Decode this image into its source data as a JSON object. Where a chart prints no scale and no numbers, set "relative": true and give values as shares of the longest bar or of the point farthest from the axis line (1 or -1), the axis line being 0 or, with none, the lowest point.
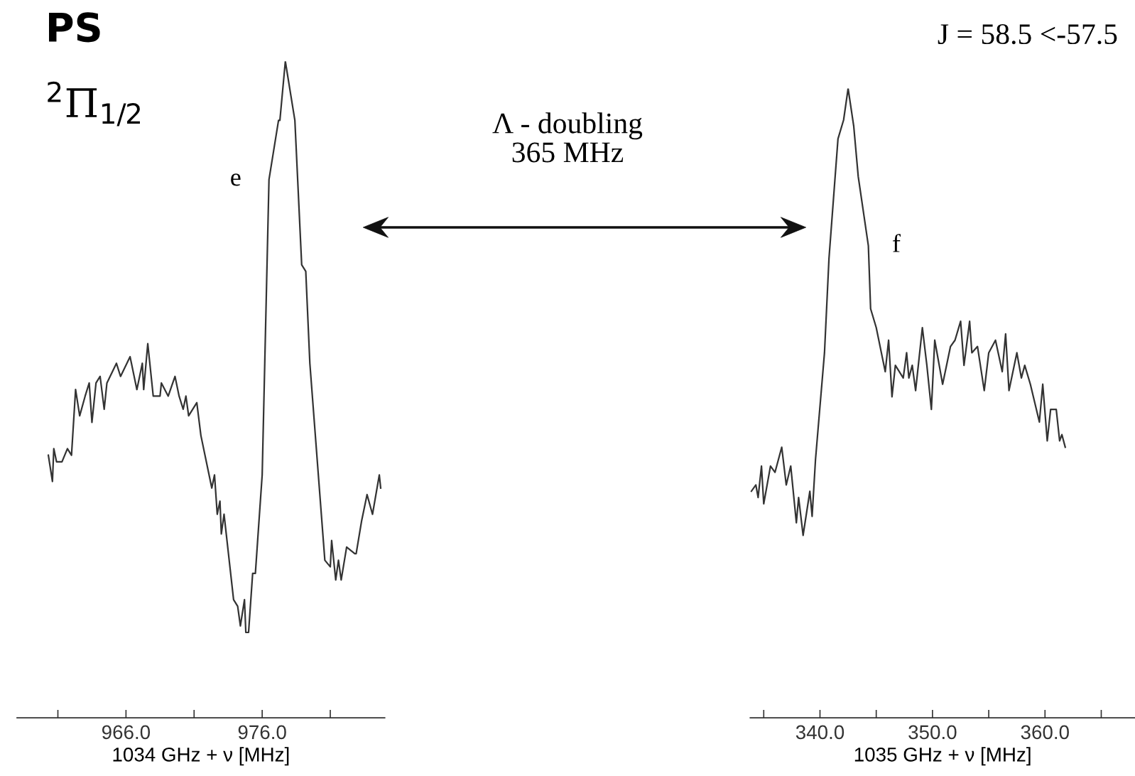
{
  "chart_data": [
    {
      "type": "line",
      "relative": true,
      "title": "PS",
      "subtitle": "$^{2}$Π$_{1/2}$",
      "xlabel": "1034 GHz + ν [MHz]",
      "annotations": [
        {
          "text": "e",
          "x": 976.5,
          "y": 0.82
        },
        "Λ - doubling\n365 MHz"
      ],
      "xlim": [
        958,
        985
      ],
      "xticks": [
        {
          "value": 961,
          "label": null
        },
        {
          "value": 966,
          "label": "966.0"
        },
        {
          "value": 971,
          "label": null
        },
        {
          "value": 976,
          "label": "976.0"
        },
        {
          "value": 981,
          "label": null
        }
      ],
      "tick_labels": "x",
      "grid": false,
      "legend": false,
      "series": [
        {
          "color": "#333333",
          "x": [
            960.3,
            960.6,
            960.7,
            960.9,
            961.3,
            961.7,
            962.0,
            962.3,
            962.6,
            963.0,
            963.3,
            963.5,
            963.8,
            964.1,
            964.4,
            964.6,
            965.3,
            965.6,
            966.3,
            966.8,
            967.2,
            967.3,
            967.6,
            968.0,
            968.5,
            968.6,
            969.1,
            969.6,
            969.9,
            970.2,
            970.4,
            970.6,
            971.2,
            971.5,
            972.0,
            972.3,
            972.5,
            972.7,
            972.9,
            973.0,
            973.2,
            973.9,
            974.2,
            974.4,
            974.7,
            974.8,
            975.0,
            975.3,
            975.5,
            976.0,
            976.5,
            977.2,
            977.3,
            977.7,
            978.4,
            978.9,
            979.2,
            979.5,
            980.6,
            981.0,
            981.1,
            981.4,
            981.6,
            981.8,
            982.2,
            982.8,
            982.9,
            983.3,
            983.7,
            984.1,
            984.6,
            984.7
          ],
          "values": [
            0.4,
            0.36,
            0.41,
            0.39,
            0.39,
            0.41,
            0.4,
            0.5,
            0.46,
            0.49,
            0.51,
            0.45,
            0.51,
            0.52,
            0.47,
            0.51,
            0.54,
            0.52,
            0.55,
            0.5,
            0.54,
            0.5,
            0.57,
            0.49,
            0.49,
            0.51,
            0.49,
            0.52,
            0.49,
            0.47,
            0.49,
            0.46,
            0.48,
            0.43,
            0.38,
            0.35,
            0.37,
            0.31,
            0.33,
            0.28,
            0.31,
            0.18,
            0.17,
            0.14,
            0.18,
            0.13,
            0.13,
            0.22,
            0.22,
            0.37,
            0.82,
            0.91,
            0.91,
            1.0,
            0.91,
            0.69,
            0.68,
            0.54,
            0.24,
            0.23,
            0.27,
            0.21,
            0.24,
            0.21,
            0.26,
            0.25,
            0.25,
            0.3,
            0.34,
            0.31,
            0.37,
            0.35
          ]
        }
      ]
    },
    {
      "type": "line",
      "relative": true,
      "xlabel": "1035 GHz + ν [MHz]",
      "annotations": [
        {
          "text": "f",
          "x": 344.3,
          "y": 0.75
        },
        "J = 58.5 <-57.5"
      ],
      "xlim": [
        333.8,
        368
      ],
      "xticks": [
        {
          "value": 335,
          "label": null
        },
        {
          "value": 340,
          "label": "340.0"
        },
        {
          "value": 345,
          "label": null
        },
        {
          "value": 350,
          "label": "350.0"
        },
        {
          "value": 355,
          "label": null
        },
        {
          "value": 360,
          "label": "360.0"
        },
        {
          "value": 365,
          "label": null
        }
      ],
      "tick_labels": "x",
      "grid": false,
      "legend": false,
      "series": [
        {
          "color": "#333333",
          "x": [
            333.9,
            334.3,
            334.5,
            334.8,
            335.0,
            335.6,
            336.0,
            336.6,
            337.0,
            337.4,
            337.9,
            338.1,
            338.5,
            339.1,
            339.3,
            339.6,
            340.4,
            340.8,
            341.6,
            342.1,
            342.5,
            343.0,
            343.4,
            344.3,
            344.5,
            345.0,
            345.8,
            346.1,
            346.4,
            346.7,
            347.4,
            347.7,
            347.9,
            348.2,
            348.5,
            349.1,
            349.5,
            349.9,
            350.2,
            350.6,
            350.9,
            351.6,
            352.0,
            352.5,
            352.8,
            353.3,
            353.5,
            354.0,
            354.6,
            355.0,
            355.6,
            356.2,
            356.5,
            356.8,
            357.5,
            357.9,
            358.2,
            358.7,
            359.5,
            359.8,
            360.2,
            360.5,
            361.0,
            361.3,
            361.5,
            361.8
          ],
          "values": [
            0.36,
            0.37,
            0.35,
            0.4,
            0.34,
            0.4,
            0.39,
            0.43,
            0.37,
            0.4,
            0.31,
            0.35,
            0.29,
            0.36,
            0.32,
            0.41,
            0.58,
            0.73,
            0.92,
            0.95,
            1.0,
            0.94,
            0.86,
            0.75,
            0.65,
            0.62,
            0.55,
            0.6,
            0.51,
            0.56,
            0.54,
            0.58,
            0.54,
            0.56,
            0.52,
            0.62,
            0.56,
            0.49,
            0.6,
            0.56,
            0.53,
            0.59,
            0.6,
            0.63,
            0.56,
            0.63,
            0.58,
            0.59,
            0.52,
            0.58,
            0.6,
            0.55,
            0.61,
            0.52,
            0.58,
            0.54,
            0.56,
            0.53,
            0.47,
            0.53,
            0.44,
            0.49,
            0.49,
            0.44,
            0.45,
            0.43
          ]
        }
      ]
    }
  ]
}
